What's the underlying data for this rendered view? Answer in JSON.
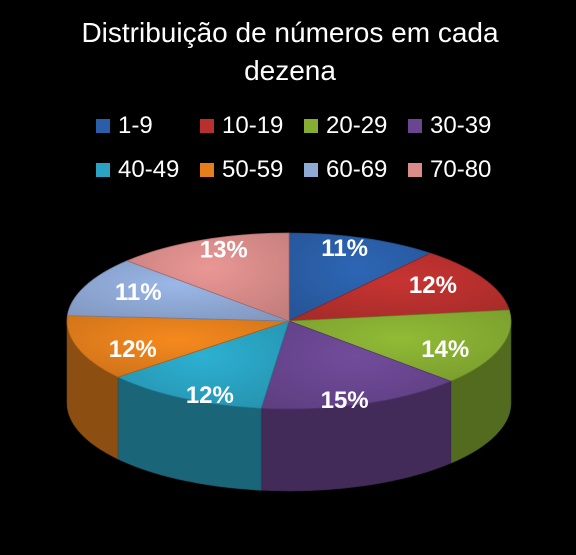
{
  "chart_data": {
    "type": "pie",
    "title": "Distribuição de números em cada dezena",
    "categories": [
      "1-9",
      "10-19",
      "20-29",
      "30-39",
      "40-49",
      "50-59",
      "60-69",
      "70-80"
    ],
    "values": [
      11,
      12,
      14,
      15,
      12,
      12,
      11,
      13
    ],
    "labels": [
      "11%",
      "12%",
      "14%",
      "15%",
      "12%",
      "12%",
      "11%",
      "13%"
    ],
    "colors": [
      "#2a5ea8",
      "#b8302e",
      "#86ad32",
      "#6a4690",
      "#2aa3c2",
      "#e47f1c",
      "#8fa9d6",
      "#d98c8a"
    ],
    "legend_position": "top",
    "style": "3d-pie"
  }
}
